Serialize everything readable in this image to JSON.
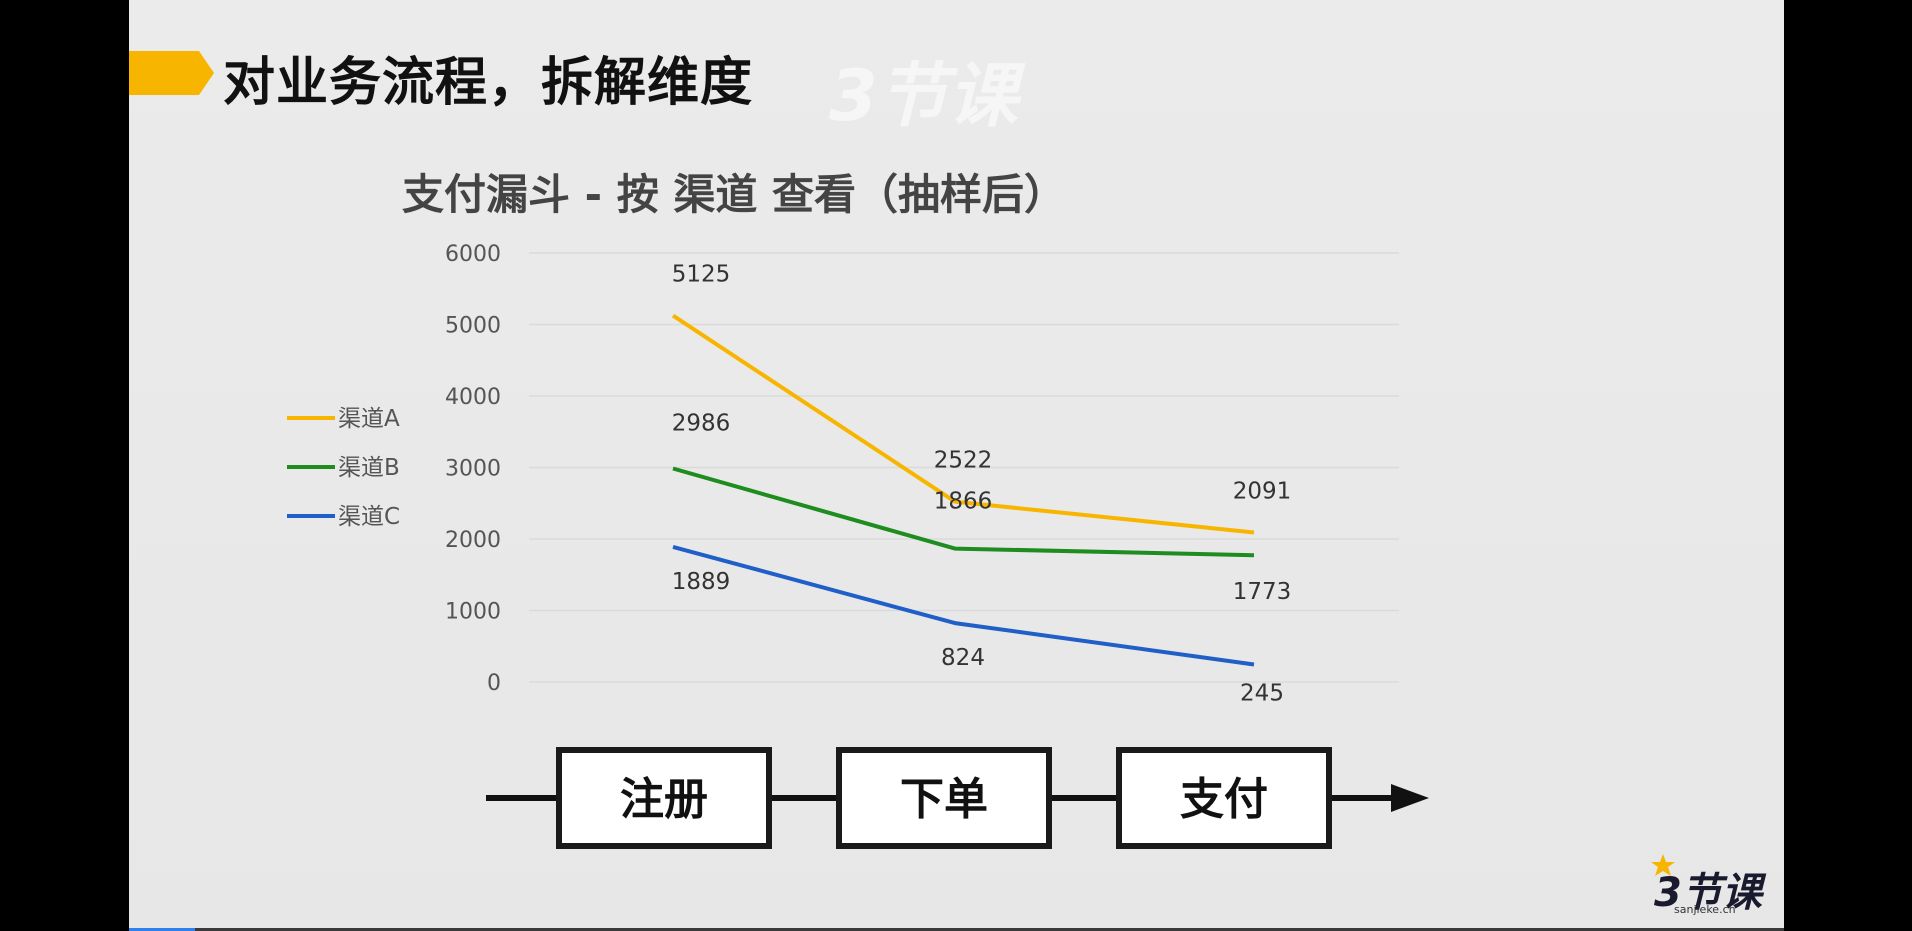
{
  "slide": {
    "title": "对业务流程，拆解维度",
    "watermark": "3节课",
    "accent_color": "#f7b500"
  },
  "chart_data": {
    "type": "line",
    "title": "支付漏斗 - 按 渠道 查看（抽样后）",
    "categories": [
      "注册",
      "下单",
      "支付"
    ],
    "ylim": [
      0,
      6000
    ],
    "yticks": [
      0,
      1000,
      2000,
      3000,
      4000,
      5000,
      6000
    ],
    "grid": true,
    "legend_position": "left",
    "series": [
      {
        "name": "渠道A",
        "color": "#f7b500",
        "values": [
          5125,
          2522,
          2091
        ]
      },
      {
        "name": "渠道B",
        "color": "#1e8c1e",
        "values": [
          2986,
          1866,
          1773
        ]
      },
      {
        "name": "渠道C",
        "color": "#1f5fc7",
        "values": [
          1889,
          824,
          245
        ]
      }
    ]
  },
  "process": {
    "steps": [
      "注册",
      "下单",
      "支付"
    ]
  },
  "brand": {
    "logo_text": "3节课",
    "url": "sanjieke.cn"
  },
  "player": {
    "progress": 0.04,
    "progress_color": "#2f80ed"
  }
}
